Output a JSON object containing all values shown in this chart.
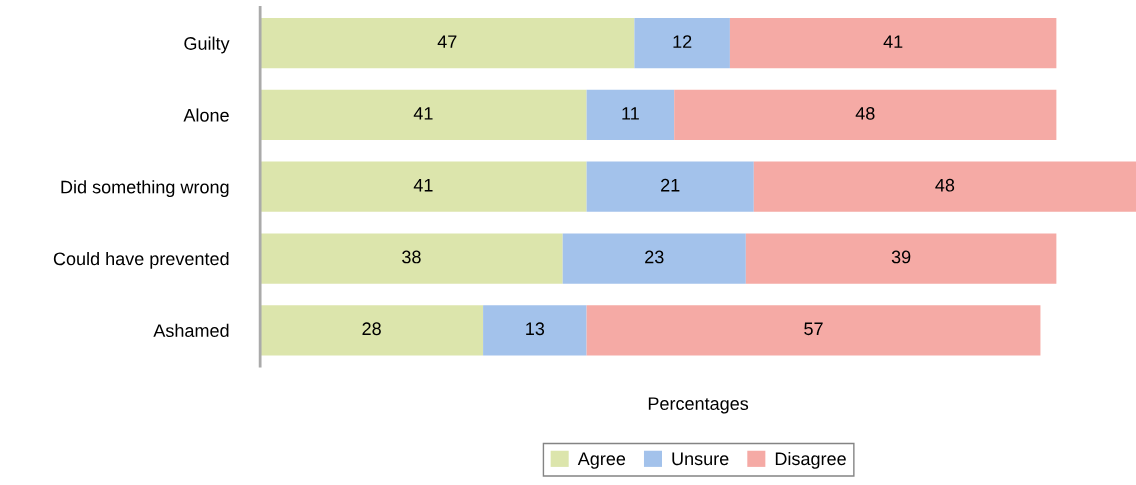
{
  "chart_data": {
    "type": "bar",
    "orientation": "horizontal",
    "stacked": true,
    "xlabel": "Percentages",
    "categories": [
      "Guilty",
      "Alone",
      "Did something wrong",
      "Could have prevented",
      "Ashamed"
    ],
    "series": [
      {
        "name": "Agree",
        "color": "#dce5ac",
        "values": [
          47,
          41,
          41,
          38,
          28
        ]
      },
      {
        "name": "Unsure",
        "color": "#a3c2eb",
        "values": [
          12,
          11,
          21,
          23,
          13
        ]
      },
      {
        "name": "Disagree",
        "color": "#f5aaa5",
        "values": [
          41,
          48,
          48,
          39,
          57
        ]
      }
    ],
    "xlim": [
      0,
      110
    ],
    "tick_labels": "y",
    "grid": false,
    "legend": "bottom",
    "data_labels": true
  }
}
